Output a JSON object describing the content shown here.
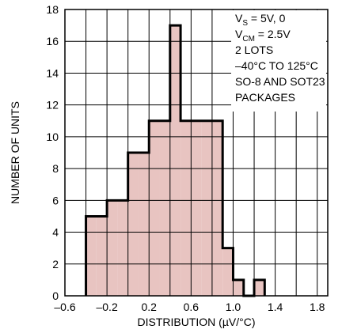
{
  "chart_data": {
    "type": "bar",
    "histogram": true,
    "xlabel": "DISTRIBUTION (µV/°C)",
    "ylabel": "NUMBER OF UNITS",
    "xlim": [
      -0.6,
      1.9
    ],
    "ylim": [
      0,
      18
    ],
    "x_ticks": [
      "–0.6",
      "–0.2",
      "0.2",
      "0.6",
      "1.0",
      "1.4",
      "1.8"
    ],
    "x_tick_values": [
      -0.6,
      -0.2,
      0.2,
      0.6,
      1.0,
      1.4,
      1.8
    ],
    "y_ticks": [
      "0",
      "2",
      "4",
      "6",
      "8",
      "10",
      "12",
      "14",
      "16",
      "18"
    ],
    "y_tick_values": [
      0,
      2,
      4,
      6,
      8,
      10,
      12,
      14,
      16,
      18
    ],
    "grid": true,
    "bin_width": 0.1,
    "bins": [
      {
        "x0": -0.4,
        "x1": -0.3,
        "count": 5
      },
      {
        "x0": -0.3,
        "x1": -0.2,
        "count": 5
      },
      {
        "x0": -0.2,
        "x1": -0.1,
        "count": 6
      },
      {
        "x0": -0.1,
        "x1": 0.0,
        "count": 6
      },
      {
        "x0": 0.0,
        "x1": 0.1,
        "count": 9
      },
      {
        "x0": 0.1,
        "x1": 0.2,
        "count": 9
      },
      {
        "x0": 0.2,
        "x1": 0.3,
        "count": 11
      },
      {
        "x0": 0.3,
        "x1": 0.4,
        "count": 11
      },
      {
        "x0": 0.4,
        "x1": 0.5,
        "count": 17
      },
      {
        "x0": 0.5,
        "x1": 0.6,
        "count": 11
      },
      {
        "x0": 0.6,
        "x1": 0.7,
        "count": 11
      },
      {
        "x0": 0.7,
        "x1": 0.8,
        "count": 11
      },
      {
        "x0": 0.8,
        "x1": 0.9,
        "count": 11
      },
      {
        "x0": 0.9,
        "x1": 1.0,
        "count": 3
      },
      {
        "x0": 1.0,
        "x1": 1.1,
        "count": 1
      },
      {
        "x0": 1.1,
        "x1": 1.2,
        "count": 0
      },
      {
        "x0": 1.2,
        "x1": 1.3,
        "count": 1
      }
    ],
    "annotations": [
      {
        "main": "V",
        "sub": "S",
        "rest": " = 5V, 0"
      },
      {
        "main": "V",
        "sub": "CM",
        "rest": " = 2.5V"
      },
      {
        "main": "2 LOTS",
        "sub": "",
        "rest": ""
      },
      {
        "main": "–40°C TO 125°C",
        "sub": "",
        "rest": ""
      },
      {
        "main": "SO-8 AND SOT23",
        "sub": "",
        "rest": ""
      },
      {
        "main": "PACKAGES",
        "sub": "",
        "rest": ""
      }
    ],
    "colors": {
      "bar_fill": "#e8c4c1",
      "outline": "#000000",
      "grid": "#000000"
    }
  }
}
